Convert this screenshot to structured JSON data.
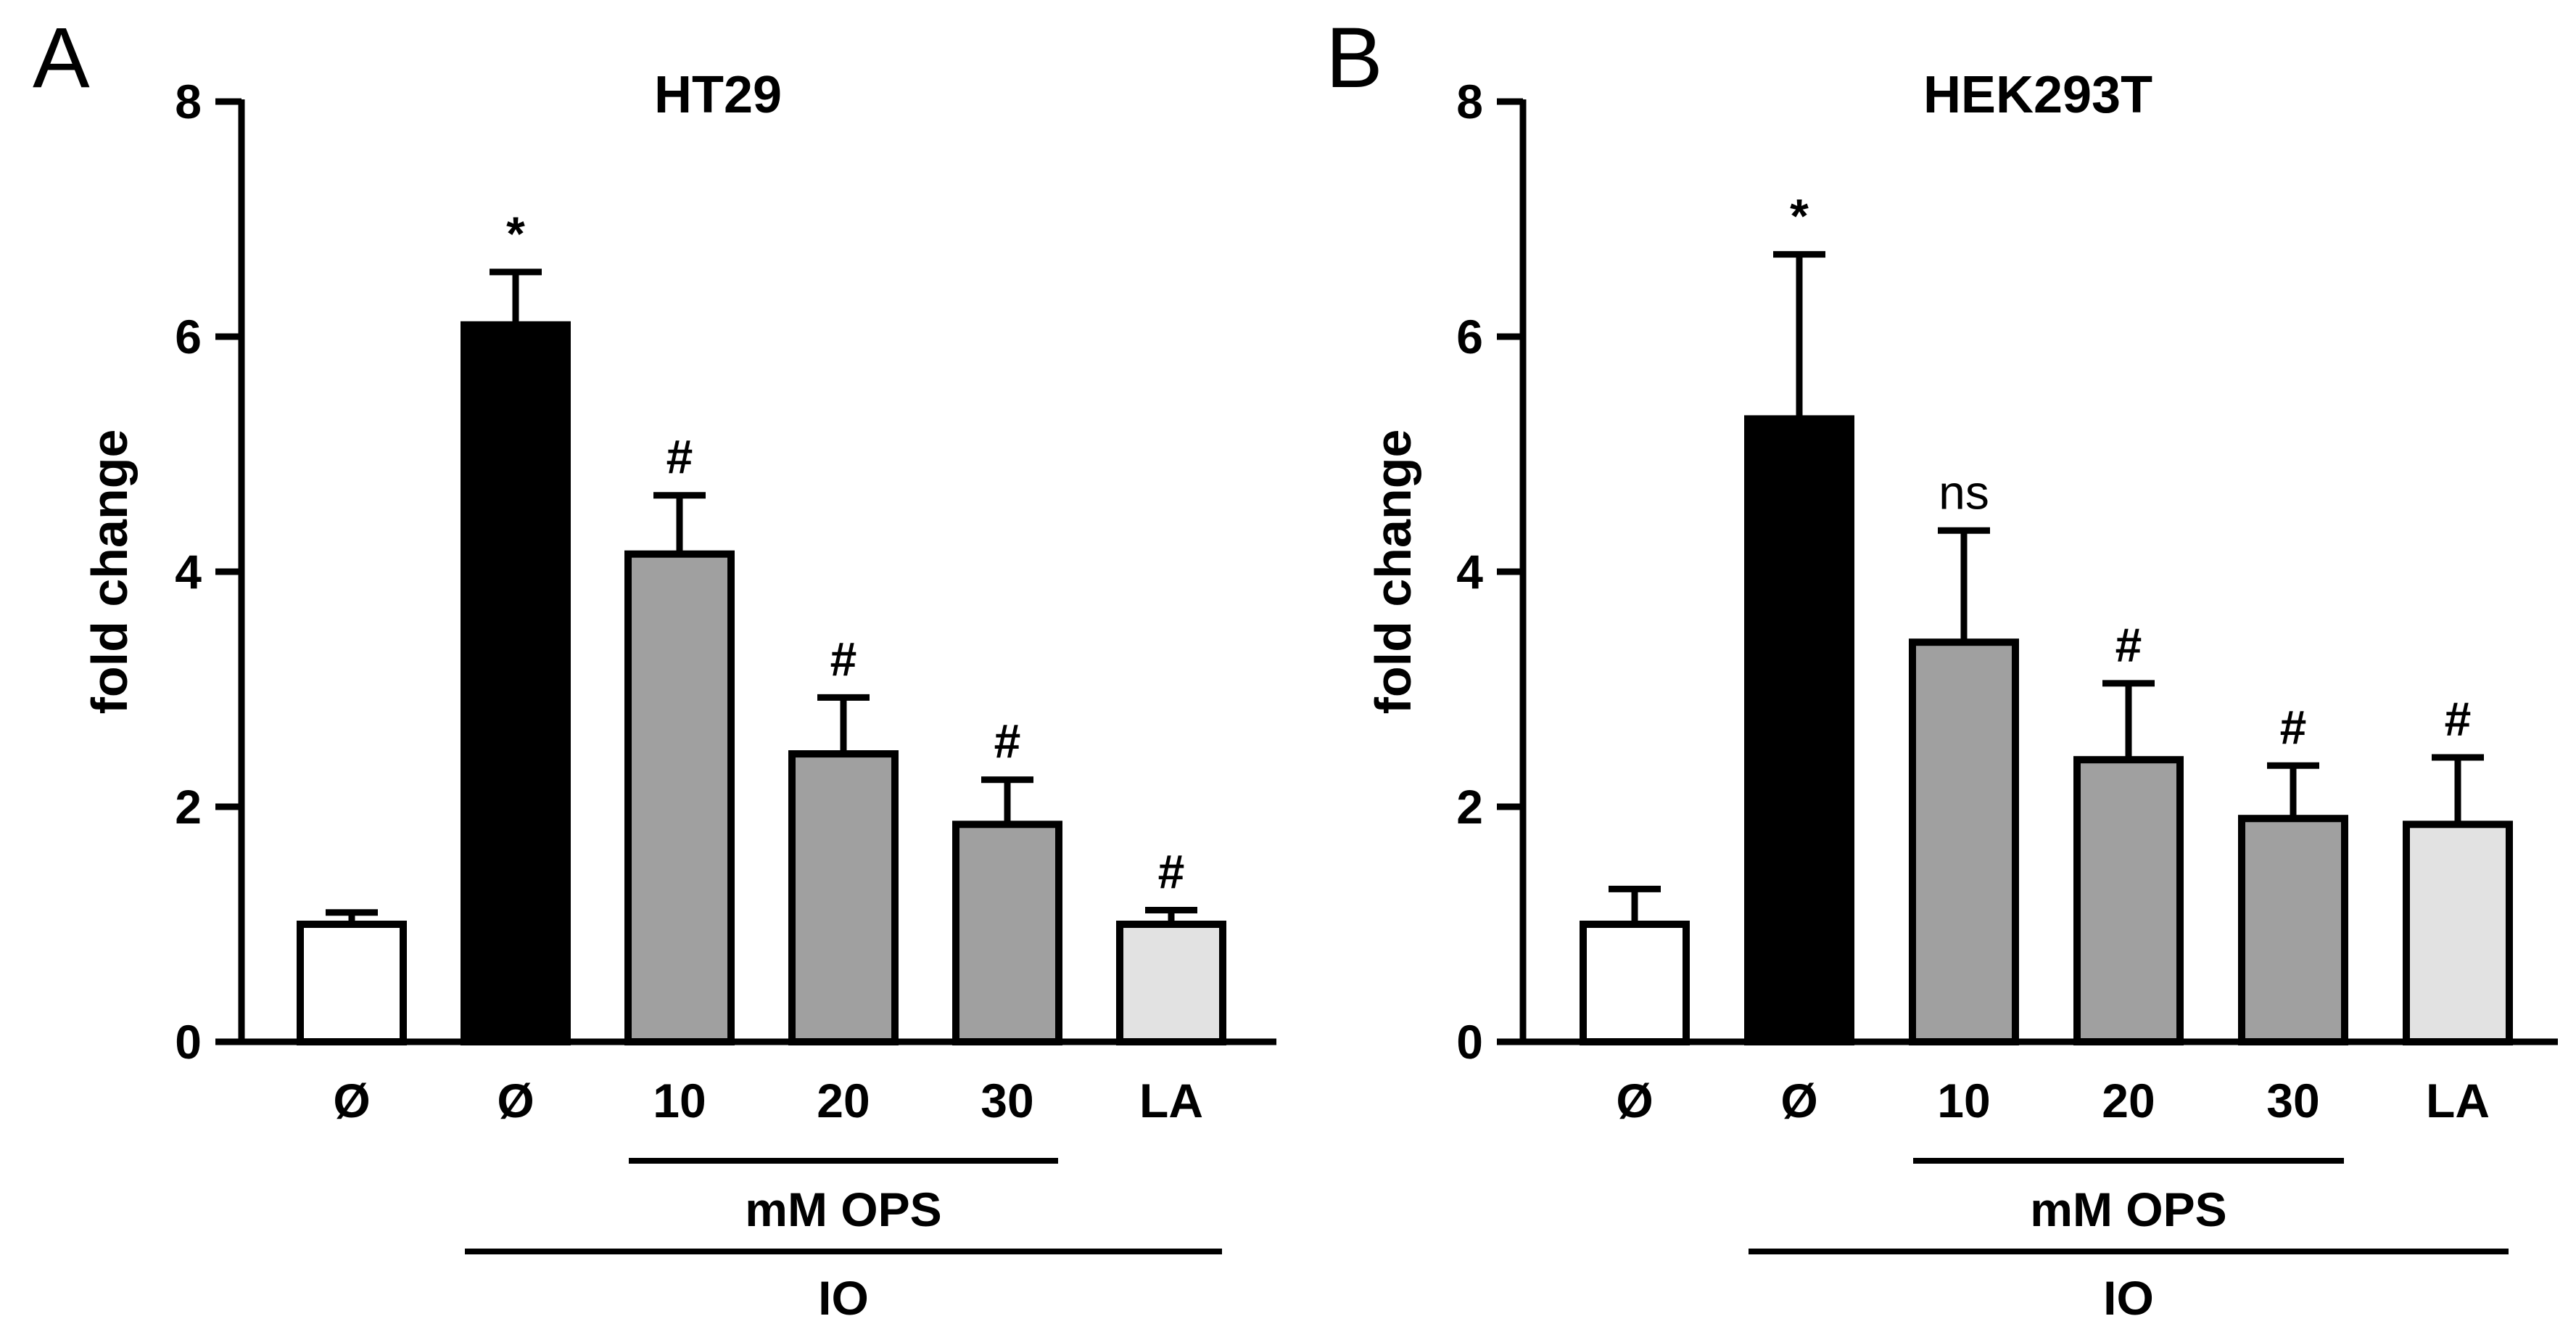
{
  "chart_data": [
    {
      "type": "bar",
      "panel": "A",
      "title": "HT29",
      "xlabel": "",
      "ylabel": "fold change",
      "ylim": [
        0,
        8
      ],
      "yticks": [
        0,
        2,
        4,
        6,
        8
      ],
      "categories": [
        "Ø",
        "Ø",
        "10",
        "20",
        "30",
        "LA"
      ],
      "values": [
        1.0,
        6.1,
        4.15,
        2.45,
        1.85,
        1.0
      ],
      "errors": [
        0.1,
        0.45,
        0.5,
        0.48,
        0.38,
        0.12
      ],
      "colors": [
        "#ffffff",
        "#000000",
        "#a0a0a0",
        "#a0a0a0",
        "#a0a0a0",
        "#e2e2e2"
      ],
      "annotations": [
        "",
        "*",
        "#",
        "#",
        "#",
        "#"
      ],
      "groups": [
        {
          "label": "mM OPS",
          "from": 2,
          "to": 4
        },
        {
          "label": "IO",
          "from": 1,
          "to": 5
        }
      ]
    },
    {
      "type": "bar",
      "panel": "B",
      "title": "HEK293T",
      "xlabel": "",
      "ylabel": "fold change",
      "ylim": [
        0,
        8
      ],
      "yticks": [
        0,
        2,
        4,
        6,
        8
      ],
      "categories": [
        "Ø",
        "Ø",
        "10",
        "20",
        "30",
        "LA"
      ],
      "values": [
        1.0,
        5.3,
        3.4,
        2.4,
        1.9,
        1.85
      ],
      "errors": [
        0.3,
        1.4,
        0.95,
        0.65,
        0.45,
        0.57
      ],
      "colors": [
        "#ffffff",
        "#000000",
        "#a0a0a0",
        "#a0a0a0",
        "#a0a0a0",
        "#e2e2e2"
      ],
      "annotations": [
        "",
        "*",
        "ns",
        "#",
        "#",
        "#"
      ],
      "groups": [
        {
          "label": "mM OPS",
          "from": 2,
          "to": 4
        },
        {
          "label": "IO",
          "from": 1,
          "to": 5
        }
      ]
    }
  ]
}
